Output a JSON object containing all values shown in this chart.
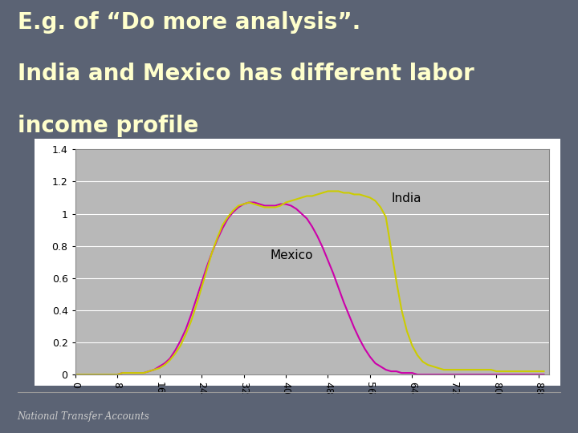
{
  "title_line1": "E.g. of “Do more analysis”.",
  "title_line2": "India and Mexico has different labor",
  "title_line3": "income profile",
  "footer": "National Transfer Accounts",
  "bg_color": "#5b6374",
  "chart_bg": "#b8b8b8",
  "chart_frame_color": "#ffffff",
  "title_color": "#ffffcc",
  "footer_color": "#cccccc",
  "x_ticks": [
    0,
    8,
    16,
    24,
    32,
    40,
    48,
    56,
    64,
    72,
    80,
    88
  ],
  "y_ticks": [
    0,
    0.2,
    0.4,
    0.6,
    0.8,
    1.0,
    1.2,
    1.4
  ],
  "ylim": [
    0,
    1.4
  ],
  "xlim": [
    0,
    90
  ],
  "india_color": "#cccc00",
  "mexico_color": "#cc00aa",
  "ages": [
    0,
    1,
    2,
    3,
    4,
    5,
    6,
    7,
    8,
    9,
    10,
    11,
    12,
    13,
    14,
    15,
    16,
    17,
    18,
    19,
    20,
    21,
    22,
    23,
    24,
    25,
    26,
    27,
    28,
    29,
    30,
    31,
    32,
    33,
    34,
    35,
    36,
    37,
    38,
    39,
    40,
    41,
    42,
    43,
    44,
    45,
    46,
    47,
    48,
    49,
    50,
    51,
    52,
    53,
    54,
    55,
    56,
    57,
    58,
    59,
    60,
    61,
    62,
    63,
    64,
    65,
    66,
    67,
    68,
    69,
    70,
    71,
    72,
    73,
    74,
    75,
    76,
    77,
    78,
    79,
    80,
    81,
    82,
    83,
    84,
    85,
    86,
    87,
    88,
    89
  ],
  "mexico_values": [
    0.0,
    0.0,
    0.0,
    0.0,
    0.0,
    0.0,
    0.0,
    0.0,
    0.0,
    0.01,
    0.01,
    0.01,
    0.01,
    0.01,
    0.02,
    0.03,
    0.05,
    0.07,
    0.1,
    0.15,
    0.21,
    0.28,
    0.37,
    0.47,
    0.57,
    0.67,
    0.76,
    0.84,
    0.91,
    0.97,
    1.01,
    1.04,
    1.06,
    1.07,
    1.07,
    1.06,
    1.05,
    1.05,
    1.05,
    1.06,
    1.06,
    1.05,
    1.03,
    1.0,
    0.97,
    0.92,
    0.86,
    0.79,
    0.71,
    0.63,
    0.54,
    0.45,
    0.37,
    0.29,
    0.22,
    0.16,
    0.11,
    0.07,
    0.05,
    0.03,
    0.02,
    0.02,
    0.01,
    0.01,
    0.01,
    0.0,
    0.0,
    0.0,
    0.0,
    0.0,
    0.0,
    0.0,
    0.0,
    0.0,
    0.0,
    0.0,
    0.0,
    0.0,
    0.0,
    0.0,
    0.0,
    0.0,
    0.0,
    0.0,
    0.0,
    0.0,
    0.0,
    0.0,
    0.0,
    0.0
  ],
  "india_values": [
    0.0,
    0.0,
    0.0,
    0.0,
    0.0,
    0.0,
    0.0,
    0.0,
    0.0,
    0.01,
    0.01,
    0.01,
    0.01,
    0.01,
    0.02,
    0.03,
    0.04,
    0.06,
    0.09,
    0.13,
    0.18,
    0.25,
    0.33,
    0.43,
    0.54,
    0.65,
    0.76,
    0.85,
    0.93,
    0.98,
    1.02,
    1.05,
    1.06,
    1.07,
    1.06,
    1.05,
    1.04,
    1.04,
    1.04,
    1.05,
    1.07,
    1.08,
    1.09,
    1.1,
    1.11,
    1.11,
    1.12,
    1.13,
    1.14,
    1.14,
    1.14,
    1.13,
    1.13,
    1.12,
    1.12,
    1.11,
    1.1,
    1.08,
    1.04,
    0.98,
    0.78,
    0.58,
    0.4,
    0.27,
    0.18,
    0.12,
    0.08,
    0.06,
    0.05,
    0.04,
    0.03,
    0.03,
    0.03,
    0.03,
    0.03,
    0.03,
    0.03,
    0.03,
    0.03,
    0.03,
    0.02,
    0.02,
    0.02,
    0.02,
    0.02,
    0.02,
    0.02,
    0.02,
    0.02,
    0.02
  ]
}
